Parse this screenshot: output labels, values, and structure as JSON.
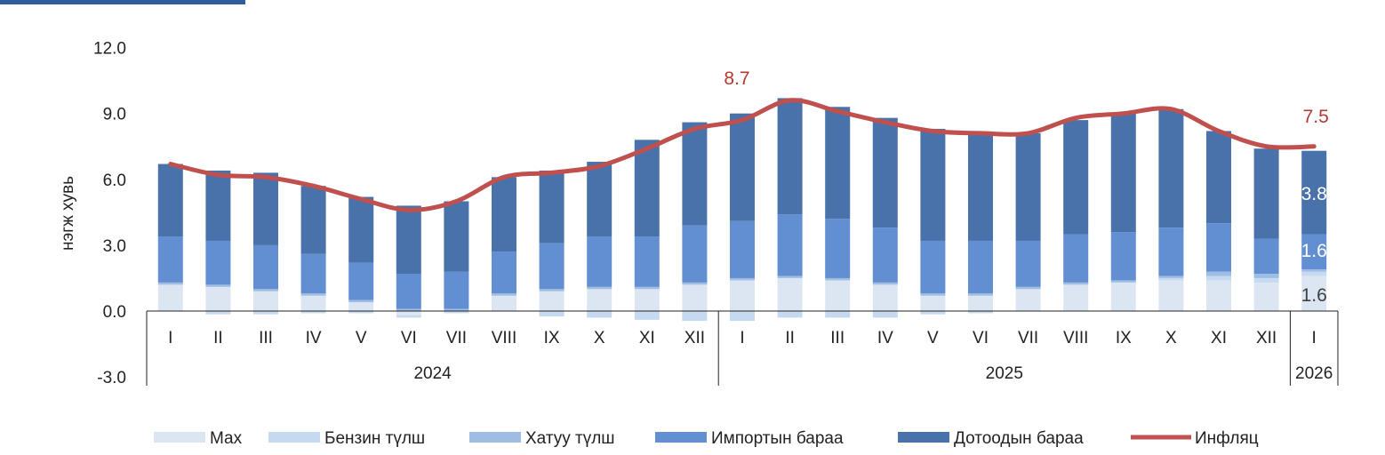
{
  "chart_data": {
    "type": "bar",
    "stacked": true,
    "ylabel": "нэгж хувь",
    "ylim": [
      -3.0,
      12.0
    ],
    "yticks": [
      "12.0",
      "9.0",
      "6.0",
      "3.0",
      "0.0",
      "-3.0"
    ],
    "categories": [
      "I",
      "II",
      "III",
      "IV",
      "V",
      "VI",
      "VII",
      "VIII",
      "IX",
      "X",
      "XI",
      "XII",
      "I",
      "II",
      "III",
      "IV",
      "V",
      "VI",
      "VII",
      "VIII",
      "IX",
      "X",
      "XI",
      "XII",
      "I"
    ],
    "year_groups": [
      {
        "label": "2024",
        "count": 12
      },
      {
        "label": "2025",
        "count": 12
      },
      {
        "label": "2026",
        "count": 1
      }
    ],
    "series": [
      {
        "name": "Мах",
        "color": "#dce6f2",
        "values": [
          1.2,
          1.1,
          0.9,
          0.7,
          0.4,
          -0.2,
          0.0,
          0.7,
          0.9,
          1.0,
          1.0,
          1.2,
          1.4,
          1.5,
          1.4,
          1.2,
          0.7,
          0.7,
          1.0,
          1.2,
          1.3,
          1.4,
          1.4,
          1.3,
          1.6
        ]
      },
      {
        "name": "Бензин түлш",
        "color": "#c5d9f1",
        "values": [
          0.0,
          -0.15,
          -0.15,
          -0.1,
          -0.1,
          -0.1,
          -0.1,
          0.0,
          -0.25,
          -0.3,
          -0.4,
          -0.45,
          -0.45,
          -0.3,
          -0.3,
          -0.3,
          -0.15,
          -0.1,
          0.0,
          0.0,
          0.0,
          0.1,
          0.2,
          0.2,
          0.2
        ]
      },
      {
        "name": "Хатуу түлш",
        "color": "#9fbde3",
        "values": [
          0.1,
          0.1,
          0.1,
          0.1,
          0.1,
          0.1,
          0.1,
          0.1,
          0.1,
          0.1,
          0.1,
          0.1,
          0.1,
          0.1,
          0.1,
          0.1,
          0.1,
          0.1,
          0.1,
          0.1,
          0.1,
          0.1,
          0.2,
          0.2,
          0.1
        ]
      },
      {
        "name": "Импортын бараа",
        "color": "#628fd1",
        "values": [
          2.1,
          2.0,
          2.0,
          1.8,
          1.7,
          1.6,
          1.7,
          1.9,
          2.1,
          2.3,
          2.3,
          2.6,
          2.6,
          2.8,
          2.7,
          2.5,
          2.4,
          2.4,
          2.1,
          2.2,
          2.2,
          2.2,
          2.2,
          1.6,
          1.6
        ]
      },
      {
        "name": "Дотоодын бараа",
        "color": "#4a72aa",
        "values": [
          3.3,
          3.2,
          3.3,
          3.1,
          3.0,
          3.1,
          3.2,
          3.4,
          3.3,
          3.4,
          4.4,
          4.7,
          4.9,
          5.3,
          5.1,
          5.0,
          5.1,
          4.9,
          4.9,
          5.2,
          5.4,
          5.4,
          4.2,
          4.1,
          3.8
        ]
      },
      {
        "name": "Инфляц",
        "type": "line",
        "color": "#c0504d",
        "values": [
          6.7,
          6.2,
          6.1,
          5.7,
          5.1,
          4.6,
          5.0,
          6.1,
          6.3,
          6.6,
          7.4,
          8.3,
          8.7,
          9.6,
          9.1,
          8.6,
          8.2,
          8.1,
          8.1,
          8.8,
          9.0,
          9.2,
          8.2,
          7.5,
          7.5
        ]
      }
    ],
    "annotations": {
      "peak_label": "8.7",
      "last_label": "7.5",
      "last_bar_labels": [
        "3.8",
        "1.6",
        "1.6"
      ]
    },
    "legend": {
      "position": "bottom",
      "items": [
        "Мах",
        "Бензин түлш",
        "Хатуу түлш",
        "Импортын бараа",
        "Дотоодын бараа",
        "Инфляц"
      ]
    }
  }
}
